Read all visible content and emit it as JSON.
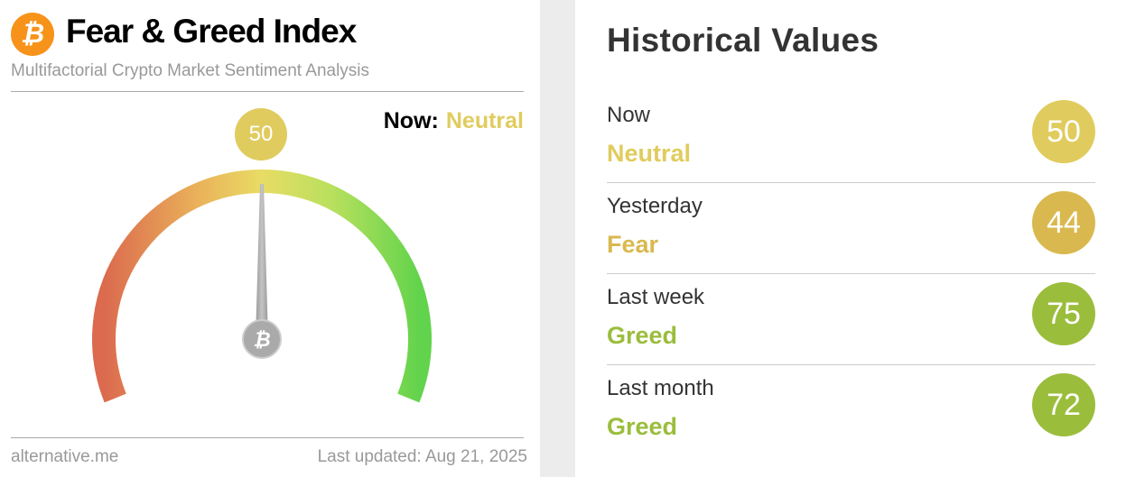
{
  "header": {
    "title": "Fear & Greed Index",
    "subtitle": "Multifactorial Crypto Market Sentiment Analysis",
    "logo_icon": "bitcoin-icon"
  },
  "gauge": {
    "value": 50,
    "now_label": "Now:",
    "now_class": "Neutral",
    "min": 0,
    "max": 100,
    "needle_icon": "bitcoin-icon",
    "color": "#e0cc5e"
  },
  "footer": {
    "source": "alternative.me",
    "updated": "Last updated: Aug 21, 2025"
  },
  "historical": {
    "title": "Historical Values",
    "rows": [
      {
        "label": "Now",
        "class": "Neutral",
        "value": "50",
        "color": "#e0cc5e"
      },
      {
        "label": "Yesterday",
        "class": "Fear",
        "value": "44",
        "color": "#d9b94f"
      },
      {
        "label": "Last week",
        "class": "Greed",
        "value": "75",
        "color": "#9bbd3c"
      },
      {
        "label": "Last month",
        "class": "Greed",
        "value": "72",
        "color": "#9bbd3c"
      }
    ]
  }
}
